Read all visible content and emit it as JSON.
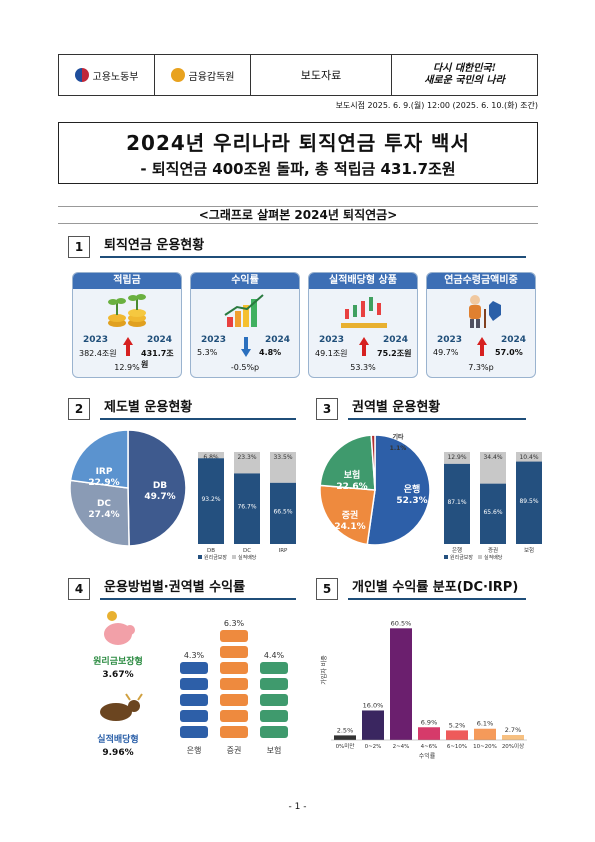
{
  "header": {
    "ministry1": "고용노동부",
    "ministry2": "금융감독원",
    "doc_type": "보도자료",
    "slogan_line1": "다시 대한민국!",
    "slogan_line2": "새로운 국민의 나라"
  },
  "embargo": "보도시점 2025. 6. 9.(월) 12:00 (2025. 6. 10.(화) 조간)",
  "title": {
    "main": "2024년 우리나라 퇴직연금 투자 백서",
    "sub": "- 퇴직연금 400조원 돌파, 총 적립금 431.7조원"
  },
  "subhead": "<그래프로 살펴본 2024년 퇴직연금>",
  "sections": [
    {
      "num": "1",
      "title": "퇴직연금 운용현황"
    },
    {
      "num": "2",
      "title": "제도별 운용현황"
    },
    {
      "num": "3",
      "title": "권역별 운용현황"
    },
    {
      "num": "4",
      "title": "운용방법별·권역별 수익률"
    },
    {
      "num": "5",
      "title": "개인별 수익률 분포(DC·IRP)"
    }
  ],
  "cards": [
    {
      "title": "적립금",
      "y1": "2023",
      "y2": "2024",
      "v1": "382.4조원",
      "v2": "431.7조원",
      "delta": "12.9%",
      "dir": "up",
      "icon": "coins-plant-icon"
    },
    {
      "title": "수익률",
      "y1": "2023",
      "y2": "2024",
      "v1": "5.3%",
      "v2": "4.8%",
      "delta": "-0.5%p",
      "dir": "down",
      "icon": "growth-bars-icon"
    },
    {
      "title": "실적배당형 상품",
      "y1": "2023",
      "y2": "2024",
      "v1": "49.1조원",
      "v2": "75.2조원",
      "delta": "53.3%",
      "dir": "up",
      "icon": "candlestick-icon"
    },
    {
      "title": "연금수령금액비중",
      "y1": "2023",
      "y2": "2024",
      "v1": "49.7%",
      "v2": "57.0%",
      "delta": "7.3%p",
      "dir": "up",
      "icon": "elderly-icon"
    }
  ],
  "footer": "- 1 -",
  "chart_data": [
    {
      "type": "pie",
      "categories": [
        "DB",
        "DC",
        "IRP"
      ],
      "values": [
        49.7,
        27.4,
        22.9
      ],
      "labels": [
        "DB 49.7%",
        "DC 27.4%",
        "IRP 22.9%"
      ],
      "colors": [
        "#3e5a8e",
        "#8a9bb5",
        "#5b93cf"
      ]
    },
    {
      "type": "bar",
      "stacked": true,
      "categories": [
        "DB",
        "DC",
        "IRP"
      ],
      "series": [
        {
          "name": "원리금보장",
          "values": [
            93.2,
            76.7,
            66.5
          ],
          "labels": [
            "93.2%",
            "76.7%",
            "66.5%"
          ],
          "color": "#24507f"
        },
        {
          "name": "실적배당",
          "values": [
            6.8,
            23.3,
            33.5
          ],
          "labels": [
            "6.8%",
            "23.3%",
            "33.5%"
          ],
          "color": "#c8c8c8"
        }
      ],
      "legend": "bottom"
    },
    {
      "type": "pie",
      "categories": [
        "은행",
        "증권",
        "보험",
        "기타"
      ],
      "values": [
        52.3,
        24.1,
        22.6,
        1.1
      ],
      "labels": [
        "은행 52.3%",
        "증권 24.1%",
        "보험 22.6%",
        "기타 1.1%"
      ],
      "colors": [
        "#2d5fa8",
        "#ee8a3e",
        "#3f9a6d",
        "#b03030"
      ]
    },
    {
      "type": "bar",
      "stacked": true,
      "categories": [
        "은행",
        "증권",
        "보험"
      ],
      "series": [
        {
          "name": "원리금보장",
          "values": [
            87.1,
            65.6,
            89.5
          ],
          "labels": [
            "87.1%",
            "65.6%",
            "89.5%"
          ],
          "color": "#24507f"
        },
        {
          "name": "실적배당",
          "values": [
            12.9,
            34.4,
            10.4
          ],
          "labels": [
            "12.9%",
            "34.4%",
            "10.4%"
          ],
          "color": "#c8c8c8"
        }
      ],
      "legend": "bottom"
    },
    {
      "type": "bar",
      "categories": [
        "은행",
        "증권",
        "보험"
      ],
      "values": [
        4.3,
        6.3,
        4.4
      ],
      "labels": [
        "4.3%",
        "6.3%",
        "4.4%"
      ],
      "colors": [
        "#2d5fa8",
        "#ee8a3e",
        "#3f9a6d"
      ],
      "side_labels": [
        {
          "name": "원리금보장형",
          "value": "3.67%",
          "icon": "piggy-bank-icon"
        },
        {
          "name": "실적배당형",
          "value": "9.96%",
          "icon": "bull-icon"
        }
      ]
    },
    {
      "type": "bar",
      "categories": [
        "0%미만",
        "0~2%",
        "2~4%",
        "4~6%",
        "6~10%",
        "10~20%",
        "20%이상"
      ],
      "values": [
        2.5,
        16.0,
        60.5,
        6.9,
        5.2,
        6.1,
        2.7
      ],
      "labels": [
        "2.5%",
        "16.0%",
        "60.5%",
        "6.9%",
        "5.2%",
        "6.1%",
        "2.7%"
      ],
      "colors": [
        "#333333",
        "#3a2660",
        "#6b1f6e",
        "#d63a6a",
        "#ee5a5a",
        "#f59a5a",
        "#f7c080"
      ],
      "xlabel": "수익률",
      "ylabel": "가입자 비중",
      "ylim": [
        0,
        65
      ]
    }
  ]
}
